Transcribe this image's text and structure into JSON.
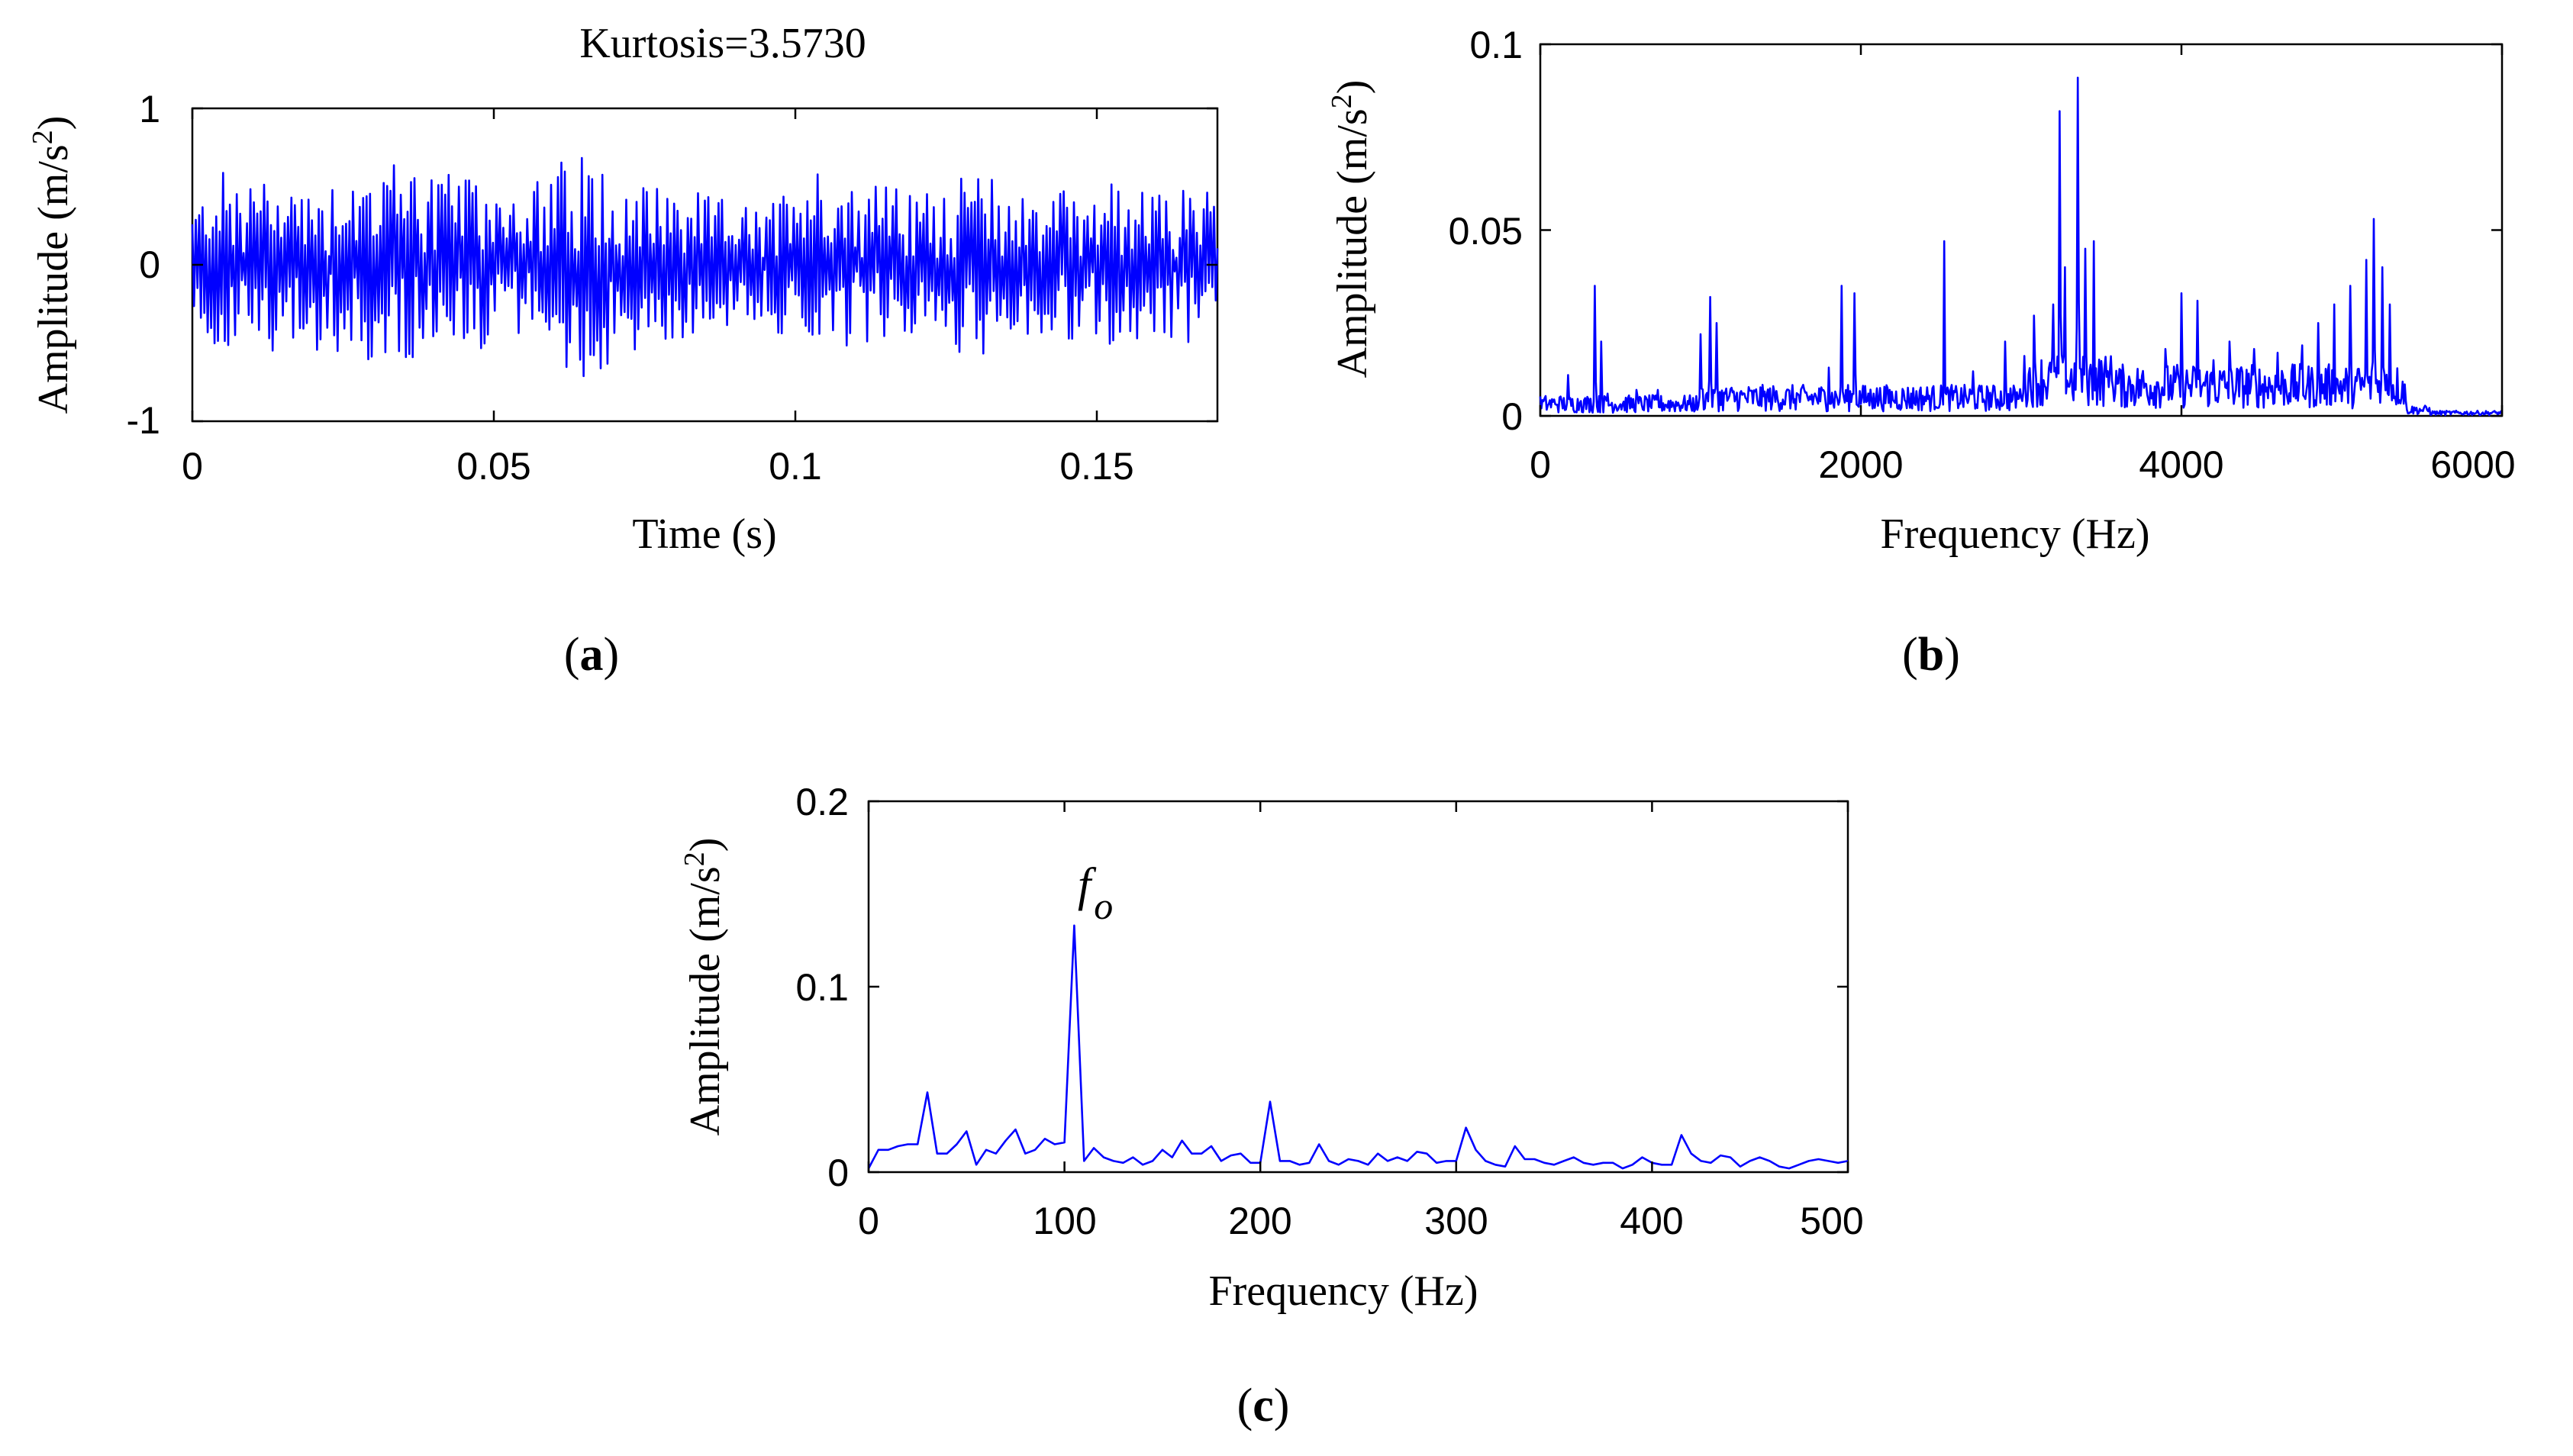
{
  "chart_data": [
    {
      "id": "a",
      "type": "line",
      "panel_label": "a",
      "title": "Kurtosis=3.5730",
      "xlabel": "Time (s)",
      "ylabel": "Amplitude (m/s",
      "ylabel_sup": "2",
      "ylabel_close": ")",
      "xlim": [
        0,
        0.17
      ],
      "ylim": [
        -1,
        1
      ],
      "xticks": [
        0,
        0.05,
        0.1,
        0.15
      ],
      "xtick_labels": [
        "0",
        "0.05",
        "0.1",
        "0.15"
      ],
      "yticks": [
        -1,
        0,
        1
      ],
      "ytick_labels": [
        "-1",
        "0",
        "1"
      ],
      "color": "#0000ff",
      "signal": {
        "description": "random vibration signal, amplitude mostly within ±0.6, peaks near 0.8",
        "samples": 600,
        "envelope": [
          [
            0,
            0.35
          ],
          [
            0.005,
            0.6
          ],
          [
            0.012,
            0.55
          ],
          [
            0.02,
            0.55
          ],
          [
            0.026,
            0.6
          ],
          [
            0.035,
            0.7
          ],
          [
            0.045,
            0.55
          ],
          [
            0.055,
            0.5
          ],
          [
            0.064,
            0.75
          ],
          [
            0.075,
            0.55
          ],
          [
            0.085,
            0.45
          ],
          [
            0.095,
            0.35
          ],
          [
            0.102,
            0.65
          ],
          [
            0.112,
            0.55
          ],
          [
            0.12,
            0.45
          ],
          [
            0.13,
            0.6
          ],
          [
            0.14,
            0.45
          ],
          [
            0.15,
            0.55
          ],
          [
            0.16,
            0.45
          ],
          [
            0.168,
            0.55
          ],
          [
            0.17,
            0.5
          ]
        ]
      }
    },
    {
      "id": "b",
      "type": "line",
      "panel_label": "b",
      "xlabel": "Frequency (Hz)",
      "ylabel": "Amplitude (m/s",
      "ylabel_sup": "2",
      "ylabel_close": ")",
      "xlim": [
        0,
        6000
      ],
      "ylim": [
        0,
        0.1
      ],
      "xticks": [
        0,
        2000,
        4000,
        6000
      ],
      "xtick_labels": [
        "0",
        "2000",
        "4000",
        "6000"
      ],
      "yticks": [
        0,
        0.05,
        0.1
      ],
      "ytick_labels": [
        "0",
        "0.05",
        "0.1"
      ],
      "color": "#0000ff",
      "peaks": [
        [
          100,
          0.003
        ],
        [
          170,
          0.011
        ],
        [
          250,
          0.004
        ],
        [
          340,
          0.035
        ],
        [
          380,
          0.02
        ],
        [
          420,
          0.006
        ],
        [
          600,
          0.007
        ],
        [
          730,
          0.007
        ],
        [
          1000,
          0.022
        ],
        [
          1060,
          0.032
        ],
        [
          1100,
          0.025
        ],
        [
          1800,
          0.013
        ],
        [
          1880,
          0.035
        ],
        [
          1960,
          0.033
        ],
        [
          2080,
          0.006
        ],
        [
          2520,
          0.047
        ],
        [
          2700,
          0.012
        ],
        [
          2900,
          0.02
        ],
        [
          3080,
          0.027
        ],
        [
          3200,
          0.03
        ],
        [
          3240,
          0.082
        ],
        [
          3270,
          0.04
        ],
        [
          3350,
          0.091
        ],
        [
          3400,
          0.045
        ],
        [
          3450,
          0.047
        ],
        [
          3550,
          0.012
        ],
        [
          3700,
          0.008
        ],
        [
          3900,
          0.018
        ],
        [
          4000,
          0.033
        ],
        [
          4100,
          0.031
        ],
        [
          4200,
          0.015
        ],
        [
          4300,
          0.02
        ],
        [
          4450,
          0.018
        ],
        [
          4600,
          0.017
        ],
        [
          4750,
          0.019
        ],
        [
          4850,
          0.025
        ],
        [
          4950,
          0.03
        ],
        [
          5050,
          0.035
        ],
        [
          5150,
          0.042
        ],
        [
          5200,
          0.053
        ],
        [
          5250,
          0.04
        ],
        [
          5300,
          0.03
        ],
        [
          5400,
          0.004
        ]
      ],
      "noise_band": [
        [
          0,
          1000,
          0.004
        ],
        [
          1000,
          3000,
          0.006
        ],
        [
          3000,
          3600,
          0.012
        ],
        [
          3600,
          5400,
          0.01
        ],
        [
          5400,
          5550,
          0.002
        ],
        [
          5550,
          6000,
          0.001
        ]
      ]
    },
    {
      "id": "c",
      "type": "line",
      "panel_label": "c",
      "xlabel": "Frequency (Hz)",
      "ylabel": "Amplitude (m/s",
      "ylabel_sup": "2",
      "ylabel_close": ")",
      "xlim": [
        0,
        500
      ],
      "ylim": [
        0,
        0.2
      ],
      "xticks": [
        0,
        100,
        200,
        300,
        400,
        500
      ],
      "xtick_labels": [
        "0",
        "100",
        "200",
        "300",
        "400",
        "500"
      ],
      "yticks": [
        0,
        0.1,
        0.2
      ],
      "ytick_labels": [
        "0",
        "0.1",
        "0.2"
      ],
      "color": "#0000ff",
      "x": [
        0,
        5,
        10,
        15,
        20,
        25,
        30,
        35,
        40,
        45,
        50,
        55,
        60,
        65,
        70,
        75,
        80,
        85,
        90,
        95,
        100,
        105,
        110,
        115,
        120,
        125,
        130,
        135,
        140,
        145,
        150,
        155,
        160,
        165,
        170,
        175,
        180,
        185,
        190,
        195,
        200,
        205,
        210,
        215,
        220,
        225,
        230,
        235,
        240,
        245,
        250,
        255,
        260,
        265,
        270,
        275,
        280,
        285,
        290,
        295,
        300,
        305,
        310,
        315,
        320,
        325,
        330,
        335,
        340,
        345,
        350,
        355,
        360,
        365,
        370,
        375,
        380,
        385,
        390,
        395,
        400,
        405,
        410,
        415,
        420,
        425,
        430,
        435,
        440,
        445,
        450,
        455,
        460,
        465,
        470,
        475,
        480,
        485,
        490,
        495,
        500
      ],
      "values": [
        0.002,
        0.012,
        0.012,
        0.014,
        0.015,
        0.015,
        0.043,
        0.01,
        0.01,
        0.015,
        0.022,
        0.004,
        0.012,
        0.01,
        0.017,
        0.023,
        0.01,
        0.012,
        0.018,
        0.015,
        0.016,
        0.133,
        0.006,
        0.013,
        0.008,
        0.006,
        0.005,
        0.008,
        0.004,
        0.006,
        0.012,
        0.008,
        0.017,
        0.01,
        0.01,
        0.014,
        0.006,
        0.009,
        0.01,
        0.005,
        0.005,
        0.038,
        0.006,
        0.006,
        0.004,
        0.005,
        0.015,
        0.006,
        0.004,
        0.007,
        0.006,
        0.004,
        0.01,
        0.006,
        0.008,
        0.006,
        0.011,
        0.01,
        0.005,
        0.006,
        0.006,
        0.024,
        0.012,
        0.006,
        0.004,
        0.003,
        0.014,
        0.007,
        0.007,
        0.005,
        0.004,
        0.006,
        0.008,
        0.005,
        0.004,
        0.005,
        0.005,
        0.002,
        0.004,
        0.008,
        0.005,
        0.004,
        0.004,
        0.02,
        0.01,
        0.006,
        0.005,
        0.009,
        0.008,
        0.003,
        0.006,
        0.008,
        0.006,
        0.003,
        0.002,
        0.004,
        0.006,
        0.007,
        0.006,
        0.005,
        0.006
      ],
      "annotation": {
        "text": "f",
        "subscript": "o",
        "x": 105,
        "y": 0.133
      }
    }
  ]
}
